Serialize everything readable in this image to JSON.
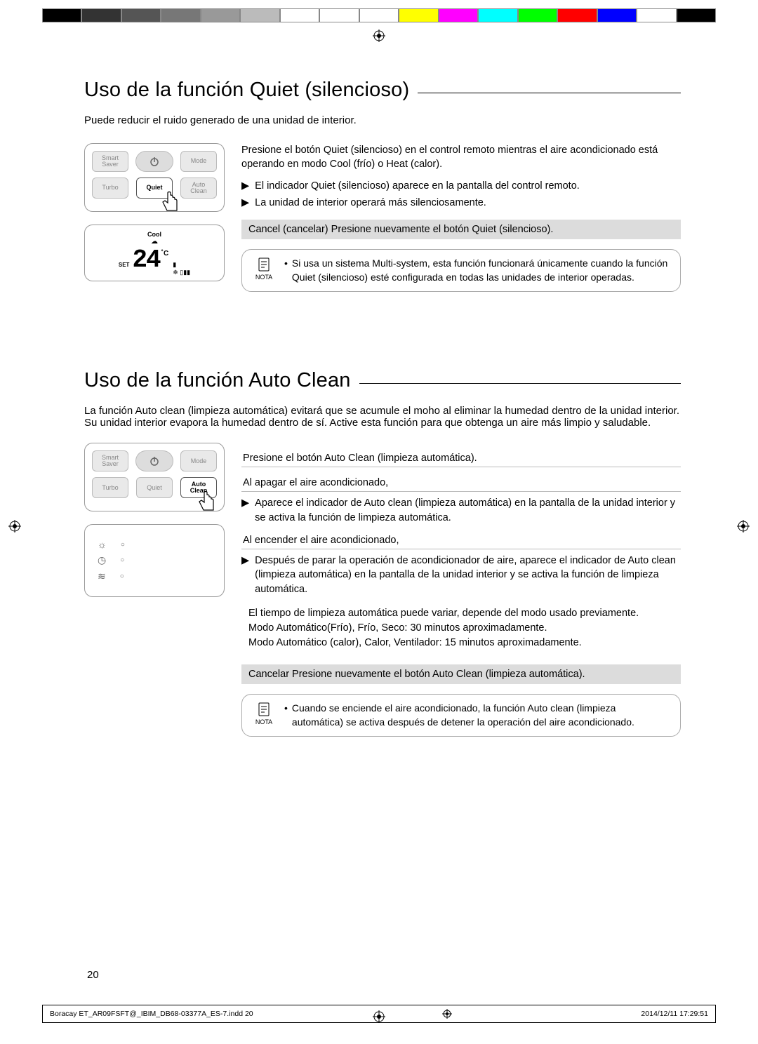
{
  "colorbar": [
    "#000000",
    "#333333",
    "#555555",
    "#777777",
    "#999999",
    "#bbbbbb",
    "#ffffff",
    "#ffffff",
    "#ffffff",
    "#ffff00",
    "#ff00ff",
    "#00ffff",
    "#00ff00",
    "#ff0000",
    "#0000ff",
    "#ffffff",
    "#000000"
  ],
  "section1": {
    "title": "Uso de la función Quiet (silencioso)",
    "intro": "Puede reducir el ruido generado de una unidad de interior.",
    "remote": {
      "smart_saver": "Smart\nSaver",
      "mode": "Mode",
      "turbo": "Turbo",
      "quiet": "Quiet",
      "auto_clean": "Auto\nClean"
    },
    "lcd": {
      "cool": "Cool",
      "set": "SET",
      "temp": "24",
      "unit": "˚C"
    },
    "para1": "Presione el botón Quiet (silencioso) en el control remoto mientras el aire acondicionado está operando en modo Cool (frío) o Heat (calor).",
    "b1": "El indicador Quiet (silencioso) aparece en la pantalla del control remoto.",
    "b2": "La unidad de interior operará más silenciosamente.",
    "cancel": "Cancel (cancelar)  Presione nuevamente el botón Quiet (silencioso).",
    "note_label": "NOTA",
    "note": "Si usa un sistema Multi-system, esta función funcionará únicamente cuando la función Quiet (silencioso) esté configurada en todas las unidades de interior operadas."
  },
  "section2": {
    "title": "Uso de la función Auto Clean",
    "intro": "La función Auto clean (limpieza automática) evitará que se acumule el moho al eliminar la humedad dentro de la unidad interior. Su unidad interior evapora la humedad dentro de sí. Active esta función para que obtenga un aire más limpio y saludable.",
    "remote": {
      "smart_saver": "Smart\nSaver",
      "mode": "Mode",
      "turbo": "Turbo",
      "quiet": "Quiet",
      "auto_clean": "Auto\nClean"
    },
    "line_press": "Presione el botón Auto Clean (limpieza automática).",
    "sub_off": "Al apagar el aire acondicionado,",
    "b_off": "Aparece el indicador de Auto clean (limpieza automática) en la pantalla de la unidad interior y se activa la función de limpieza automática.",
    "sub_on": "Al encender el aire acondicionado,",
    "b_on": "Después de parar la operación de acondicionador de aire, aparece el indicador de Auto clean (limpieza automática) en la pantalla de la unidad interior y se activa la función de limpieza automática.",
    "timing1": "El tiempo de limpieza automática puede variar, depende del modo usado previamente.",
    "timing2": "Modo Automático(Frío), Frío, Seco:  30 minutos aproximadamente.",
    "timing3": "Modo Automático (calor), Calor, Ventilador: 15 minutos aproximadamente.",
    "cancel": "Cancelar Presione nuevamente el botón Auto Clean (limpieza automática).",
    "note_label": "NOTA",
    "note": "Cuando se enciende el aire acondicionado, la función Auto clean (limpieza automática) se activa después de detener la operación del aire acondicionado."
  },
  "page_number": "20",
  "footer_left": "Boracay ET_AR09FSFT@_IBIM_DB68-03377A_ES-7.indd   20",
  "footer_right": "2014/12/11   17:29:51"
}
